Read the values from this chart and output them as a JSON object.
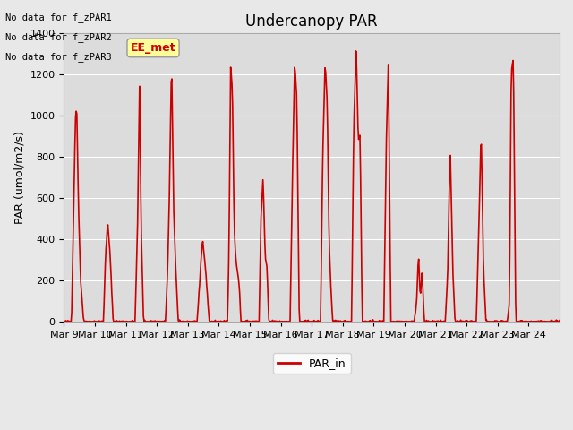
{
  "title": "Undercanopy PAR",
  "ylabel": "PAR (umol/m2/s)",
  "ylim": [
    0,
    1400
  ],
  "yticks": [
    0,
    200,
    400,
    600,
    800,
    1000,
    1200,
    1400
  ],
  "line_color": "#cc0000",
  "line_width": 1.2,
  "legend_label": "PAR_in",
  "no_data_texts": [
    "No data for f_zPAR1",
    "No data for f_zPAR2",
    "No data for f_zPAR3"
  ],
  "ee_met_label": "EE_met",
  "ee_met_color": "#cc0000",
  "ee_met_bg": "#ffff99",
  "background_color": "#e8e8e8",
  "plot_bg_color": "#dcdcdc",
  "xtick_labels": [
    "Mar 9",
    "Mar 10",
    "Mar 11",
    "Mar 12",
    "Mar 13",
    "Mar 14",
    "Mar 15",
    "Mar 16",
    "Mar 17",
    "Mar 18",
    "Mar 19",
    "Mar 20",
    "Mar 21",
    "Mar 22",
    "Mar 23",
    "Mar 24"
  ],
  "n_days": 16
}
